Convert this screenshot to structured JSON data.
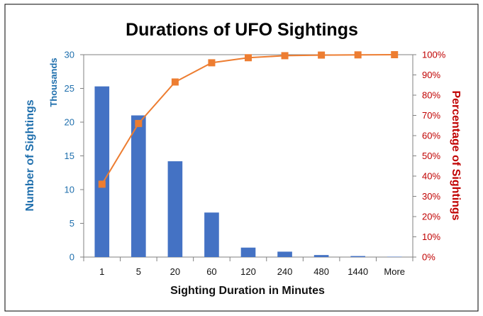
{
  "chart_data": {
    "type": "bar",
    "title": "Durations of UFO Sightings",
    "xlabel": "Sighting Duration in Minutes",
    "ylabel": "Number of Sightings",
    "ylabel_units": "Thousands",
    "y2label": "Percentage of Sightings",
    "categories": [
      "1",
      "5",
      "20",
      "60",
      "120",
      "240",
      "480",
      "1440",
      "More"
    ],
    "ylim": [
      0,
      30
    ],
    "yticks": [
      "0",
      "5",
      "10",
      "15",
      "20",
      "25",
      "30"
    ],
    "y2lim": [
      0,
      100
    ],
    "y2ticks": [
      "0%",
      "10%",
      "20%",
      "30%",
      "40%",
      "50%",
      "60%",
      "70%",
      "80%",
      "90%",
      "100%"
    ],
    "series": [
      {
        "type": "bar",
        "axis": "left",
        "color": "#4472c4",
        "values": [
          25.3,
          21.0,
          14.2,
          6.6,
          1.4,
          0.8,
          0.3,
          0.15,
          0.05
        ]
      },
      {
        "type": "line",
        "axis": "right",
        "color": "#ed7d31",
        "values": [
          36,
          66,
          86.5,
          96,
          98.5,
          99.5,
          99.8,
          99.9,
          100
        ]
      }
    ],
    "grid": false,
    "legend": "none"
  }
}
